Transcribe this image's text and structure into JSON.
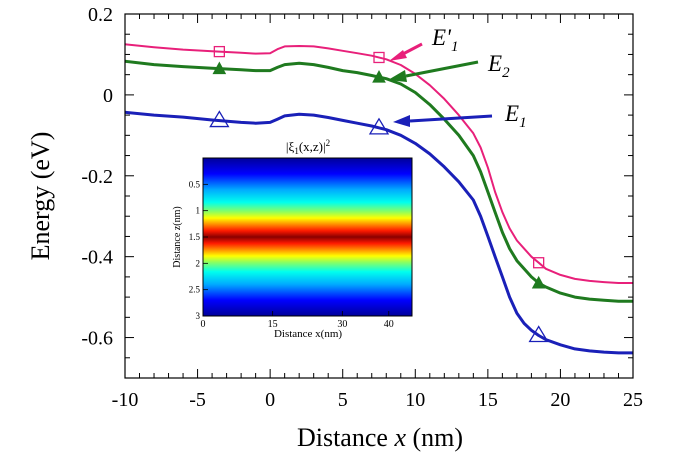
{
  "chart_data": {
    "type": "line",
    "ylabel": "Energy (eV)",
    "xlabel_prefix": "Distance ",
    "xlabel_var": "x",
    "xlabel_suffix": " (nm)",
    "xlim": [
      -10,
      25
    ],
    "ylim": [
      -0.7,
      0.2
    ],
    "xticks": [
      -10,
      -5,
      0,
      5,
      10,
      15,
      20,
      25
    ],
    "xtick_labels": [
      "-10",
      "-5",
      "0",
      "5",
      "10",
      "15",
      "20",
      "25"
    ],
    "yticks": [
      -0.6,
      -0.4,
      -0.2,
      0,
      0.2
    ],
    "ytick_labels": [
      "-0.6",
      "-0.4",
      "-0.2",
      "0",
      "0.2"
    ],
    "series": [
      {
        "name": "E'1",
        "label_main": "E'",
        "label_sub": "1",
        "color": "#e8207a",
        "marker": "square",
        "marker_x": [
          -3.5,
          7.5,
          18.5
        ],
        "x": [
          -10,
          -8,
          -6,
          -4,
          -2,
          -1,
          0,
          0.5,
          1,
          2,
          3,
          4,
          5,
          6,
          7,
          8,
          9,
          10,
          11,
          12,
          13,
          14,
          14.5,
          15,
          15.5,
          16,
          16.5,
          17,
          17.5,
          18,
          18.5,
          19,
          20,
          21,
          22,
          23,
          24,
          25
        ],
        "y": [
          0.125,
          0.118,
          0.112,
          0.108,
          0.104,
          0.102,
          0.103,
          0.113,
          0.12,
          0.121,
          0.12,
          0.115,
          0.109,
          0.103,
          0.097,
          0.088,
          0.074,
          0.052,
          0.024,
          -0.01,
          -0.05,
          -0.095,
          -0.13,
          -0.18,
          -0.24,
          -0.29,
          -0.33,
          -0.36,
          -0.38,
          -0.4,
          -0.415,
          -0.43,
          -0.445,
          -0.455,
          -0.46,
          -0.463,
          -0.465,
          -0.465
        ]
      },
      {
        "name": "E2",
        "label_main": "E",
        "label_sub": "2",
        "color": "#1f7a1f",
        "marker": "filled-triangle",
        "marker_x": [
          -3.5,
          7.5,
          18.5
        ],
        "x": [
          -10,
          -8,
          -6,
          -4,
          -2,
          -1,
          0,
          0.5,
          1,
          2,
          3,
          4,
          5,
          6,
          7,
          8,
          9,
          10,
          11,
          12,
          13,
          14,
          14.5,
          15,
          15.5,
          16,
          16.5,
          17,
          17.5,
          18,
          18.5,
          19,
          20,
          21,
          22,
          23,
          24,
          25
        ],
        "y": [
          0.083,
          0.075,
          0.07,
          0.066,
          0.062,
          0.06,
          0.06,
          0.068,
          0.075,
          0.078,
          0.075,
          0.068,
          0.06,
          0.055,
          0.048,
          0.04,
          0.027,
          0.006,
          -0.024,
          -0.06,
          -0.1,
          -0.15,
          -0.19,
          -0.24,
          -0.29,
          -0.34,
          -0.38,
          -0.41,
          -0.43,
          -0.45,
          -0.465,
          -0.475,
          -0.49,
          -0.5,
          -0.505,
          -0.508,
          -0.51,
          -0.51
        ]
      },
      {
        "name": "E1",
        "label_main": "E",
        "label_sub": "1",
        "color": "#1a20b8",
        "marker": "open-triangle",
        "marker_x": [
          -3.5,
          7.5,
          18.5
        ],
        "x": [
          -10,
          -8,
          -6,
          -4,
          -2,
          -1,
          0,
          0.5,
          1,
          2,
          3,
          4,
          5,
          6,
          7,
          8,
          9,
          10,
          11,
          12,
          13,
          14,
          14.5,
          15,
          15.5,
          16,
          16.5,
          17,
          17.5,
          18,
          18.5,
          19,
          20,
          21,
          22,
          23,
          24,
          25
        ],
        "y": [
          -0.043,
          -0.05,
          -0.055,
          -0.062,
          -0.068,
          -0.07,
          -0.068,
          -0.06,
          -0.052,
          -0.048,
          -0.05,
          -0.056,
          -0.063,
          -0.07,
          -0.077,
          -0.086,
          -0.1,
          -0.12,
          -0.146,
          -0.178,
          -0.215,
          -0.26,
          -0.3,
          -0.35,
          -0.4,
          -0.45,
          -0.5,
          -0.54,
          -0.565,
          -0.582,
          -0.595,
          -0.605,
          -0.618,
          -0.628,
          -0.633,
          -0.636,
          -0.638,
          -0.638
        ]
      }
    ],
    "inset": {
      "type": "heatmap",
      "title_prefix": "|ξ",
      "title_sub": "1",
      "title_suffix": "(x,z)|",
      "title_sup": "2",
      "xlabel": "Distance x(nm)",
      "ylabel": "Distance z(nm)",
      "xlim": [
        0,
        45
      ],
      "ylim": [
        0,
        3
      ],
      "xticks": [
        0,
        15,
        30,
        40
      ],
      "xtick_labels": [
        "0",
        "15",
        "30",
        "40"
      ],
      "yticks": [
        0.5,
        1,
        1.5,
        2,
        2.5,
        3
      ],
      "ytick_labels": [
        "0.5",
        "1",
        "1.5",
        "2",
        "2.5",
        "3"
      ],
      "peak_z": 1.5,
      "colormap": "jet"
    }
  }
}
